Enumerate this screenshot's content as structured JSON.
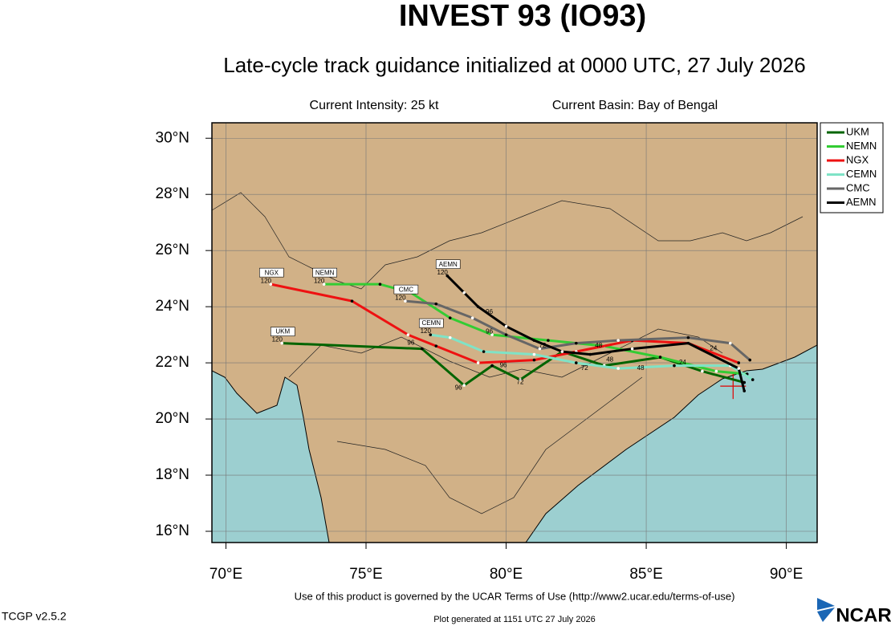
{
  "chart_data": {
    "type": "track",
    "title": "INVEST 93 (IO93)",
    "subtitle": "Late-cycle track guidance initialized at 0000 UTC, 27 July 2026",
    "intensity": "Current Intensity: 25 kt",
    "basin": "Current Basin: Bay of Bengal",
    "terms": "Use of this product is governed by the UCAR Terms of Use (http://www2.ucar.edu/terms-of-use)",
    "version": "TCGP v2.5.2",
    "generated": "Plot generated at 1151 UTC   27 July 2026",
    "logo": "NCAR",
    "xlim": [
      69.5,
      91.1
    ],
    "ylim": [
      15.6,
      30.55
    ],
    "xticks": [
      {
        "value": 70,
        "label": "70°E"
      },
      {
        "value": 75,
        "label": "75°E"
      },
      {
        "value": 80,
        "label": "80°E"
      },
      {
        "value": 85,
        "label": "85°E"
      },
      {
        "value": 90,
        "label": "90°E"
      }
    ],
    "yticks": [
      {
        "value": 16,
        "label": "16°N"
      },
      {
        "value": 18,
        "label": "18°N"
      },
      {
        "value": 20,
        "label": "20°N"
      },
      {
        "value": 22,
        "label": "22°N"
      },
      {
        "value": 24,
        "label": "24°N"
      },
      {
        "value": 26,
        "label": "26°N"
      },
      {
        "value": 28,
        "label": "28°N"
      },
      {
        "value": 30,
        "label": "30°N"
      }
    ],
    "grid": true,
    "legend": "top-right",
    "current_position": {
      "lon": 88.1,
      "lat": 21.17,
      "color": "#e00000"
    },
    "series": [
      {
        "name": "UKM",
        "color": "#006400",
        "x": [
          88.5,
          87.0,
          85.5,
          83.5,
          82.0,
          80.5,
          79.5,
          78.5,
          77.0,
          72.0
        ],
        "values": [
          21.3,
          21.7,
          22.2,
          21.9,
          22.4,
          21.4,
          21.9,
          21.2,
          22.5,
          22.7
        ]
      },
      {
        "name": "NEMN",
        "color": "#33cc33",
        "x": [
          88.6,
          87.5,
          85.5,
          83.5,
          81.5,
          79.5,
          78.0,
          76.6,
          75.5,
          73.5
        ],
        "values": [
          21.6,
          21.7,
          22.2,
          22.6,
          22.8,
          23.0,
          23.6,
          24.5,
          24.8,
          24.8
        ]
      },
      {
        "name": "NGX",
        "color": "#ee1111",
        "x": [
          88.3,
          86.5,
          84.5,
          82.5,
          81.0,
          79.0,
          77.5,
          76.5,
          74.5,
          71.6
        ],
        "values": [
          22.0,
          22.7,
          22.8,
          22.4,
          22.1,
          22.0,
          22.6,
          23.0,
          24.2,
          24.8
        ]
      },
      {
        "name": "CEMN",
        "color": "#7fe3c6",
        "x": [
          88.8,
          88.0,
          86.0,
          84.0,
          82.5,
          81.0,
          79.2,
          78.0,
          77.3
        ],
        "values": [
          21.4,
          21.9,
          21.9,
          21.8,
          22.0,
          22.3,
          22.4,
          22.9,
          23.0
        ]
      },
      {
        "name": "CMC",
        "color": "#666666",
        "x": [
          88.7,
          88.0,
          86.5,
          84.0,
          82.5,
          81.2,
          80.0,
          78.8,
          77.5,
          76.4
        ],
        "values": [
          22.1,
          22.7,
          22.9,
          22.8,
          22.7,
          22.5,
          23.0,
          23.6,
          24.1,
          24.2
        ]
      },
      {
        "name": "AEMN",
        "color": "#000000",
        "x": [
          88.5,
          88.3,
          86.5,
          84.5,
          83.0,
          82.0,
          81.0,
          80.0,
          79.0,
          78.5,
          77.9
        ],
        "values": [
          21.0,
          21.8,
          22.7,
          22.5,
          22.3,
          22.4,
          22.8,
          23.3,
          24.0,
          24.5,
          25.1
        ]
      }
    ],
    "end_labels": [
      "120",
      "120",
      "120",
      "120",
      "120",
      "120"
    ],
    "annotations": [
      {
        "text": "96",
        "lon": 78.3,
        "lat": 21.1
      },
      {
        "text": "72",
        "lon": 80.5,
        "lat": 21.3
      },
      {
        "text": "96",
        "lon": 79.9,
        "lat": 21.9
      },
      {
        "text": "96",
        "lon": 79.4,
        "lat": 23.1
      },
      {
        "text": "96",
        "lon": 76.6,
        "lat": 22.7
      },
      {
        "text": "72",
        "lon": 81.3,
        "lat": 22.6
      },
      {
        "text": "72",
        "lon": 82.8,
        "lat": 21.8
      },
      {
        "text": "48",
        "lon": 84.8,
        "lat": 21.8
      },
      {
        "text": "48",
        "lon": 83.3,
        "lat": 22.6
      },
      {
        "text": "48",
        "lon": 83.7,
        "lat": 22.1
      },
      {
        "text": "24",
        "lon": 86.3,
        "lat": 22.0
      },
      {
        "text": "24",
        "lon": 87.4,
        "lat": 22.5
      },
      {
        "text": "96",
        "lon": 79.4,
        "lat": 23.8
      }
    ]
  }
}
